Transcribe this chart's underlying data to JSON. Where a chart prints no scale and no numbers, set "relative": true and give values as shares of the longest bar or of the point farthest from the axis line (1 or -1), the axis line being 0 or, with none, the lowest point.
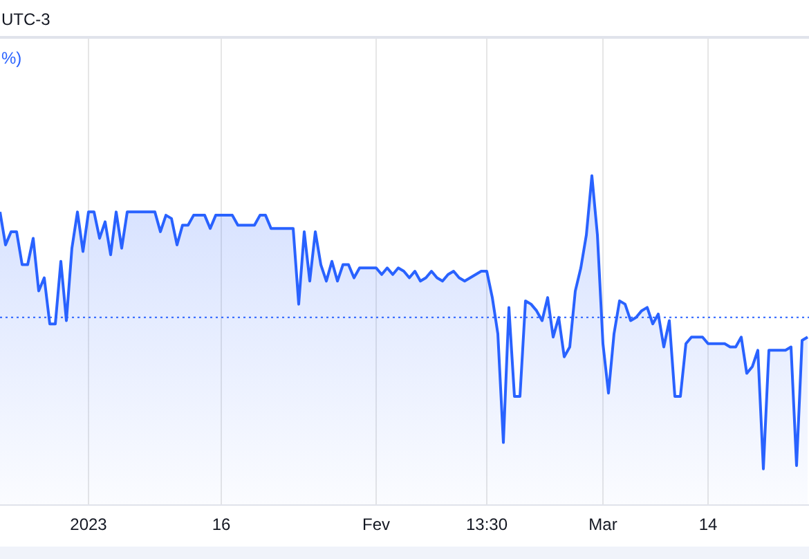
{
  "chart_data": {
    "type": "area",
    "relative": true,
    "color": "#2962ff",
    "categories": [
      null,
      null,
      null,
      null,
      null,
      null,
      null,
      null,
      null,
      null,
      null,
      null,
      null,
      null,
      null,
      null,
      "2023",
      null,
      null,
      null,
      null,
      null,
      null,
      null,
      null,
      null,
      null,
      null,
      null,
      null,
      null,
      null,
      null,
      null,
      null,
      null,
      null,
      null,
      null,
      null,
      "16",
      null,
      null,
      null,
      null,
      null,
      null,
      null,
      null,
      null,
      null,
      null,
      null,
      null,
      null,
      null,
      null,
      null,
      null,
      null,
      null,
      null,
      null,
      null,
      null,
      null,
      null,
      null,
      "Fev",
      null,
      null,
      null,
      null,
      null,
      null,
      null,
      null,
      null,
      null,
      null,
      null,
      null,
      null,
      null,
      null,
      null,
      null,
      null,
      "13:30",
      null,
      null,
      null,
      null,
      null,
      null,
      null,
      null,
      null,
      null,
      null,
      null,
      null,
      null,
      null,
      null,
      null,
      null,
      null,
      null,
      "Mar",
      null,
      null,
      null,
      null,
      null,
      null,
      null,
      null,
      null,
      null,
      null,
      null,
      null,
      null,
      null,
      null,
      null,
      null,
      "14",
      null,
      null,
      null,
      null,
      null,
      null,
      null,
      null,
      null,
      null,
      null,
      null,
      null,
      null,
      null,
      null,
      null,
      null
    ],
    "values": [
      0.89,
      0.79,
      0.83,
      0.83,
      0.73,
      0.73,
      0.81,
      0.65,
      0.69,
      0.55,
      0.55,
      0.74,
      0.56,
      0.78,
      0.89,
      0.77,
      0.89,
      0.89,
      0.81,
      0.86,
      0.76,
      0.89,
      0.78,
      0.89,
      0.89,
      0.89,
      0.89,
      0.89,
      0.89,
      0.83,
      0.88,
      0.87,
      0.79,
      0.85,
      0.85,
      0.88,
      0.88,
      0.88,
      0.84,
      0.88,
      0.88,
      0.88,
      0.88,
      0.85,
      0.85,
      0.85,
      0.85,
      0.88,
      0.88,
      0.84,
      0.84,
      0.84,
      0.84,
      0.84,
      0.61,
      0.83,
      0.68,
      0.83,
      0.73,
      0.68,
      0.74,
      0.68,
      0.73,
      0.73,
      0.69,
      0.72,
      0.72,
      0.72,
      0.72,
      0.7,
      0.72,
      0.7,
      0.72,
      0.71,
      0.69,
      0.71,
      0.68,
      0.69,
      0.71,
      0.69,
      0.68,
      0.7,
      0.71,
      0.69,
      0.68,
      0.69,
      0.7,
      0.71,
      0.71,
      0.63,
      0.52,
      0.19,
      0.6,
      0.33,
      0.33,
      0.62,
      0.61,
      0.59,
      0.56,
      0.63,
      0.51,
      0.57,
      0.45,
      0.48,
      0.65,
      0.72,
      0.82,
      1,
      0.82,
      0.49,
      0.34,
      0.52,
      0.62,
      0.61,
      0.56,
      0.57,
      0.59,
      0.6,
      0.55,
      0.58,
      0.48,
      0.56,
      0.33,
      0.33,
      0.49,
      0.51,
      0.51,
      0.51,
      0.49,
      0.49,
      0.49,
      0.49,
      0.48,
      0.48,
      0.51,
      0.4,
      0.42,
      0.47,
      0.11,
      0.47,
      0.47,
      0.47,
      0.47,
      0.48,
      0.12,
      0.5,
      0.51
    ],
    "ref_lines": [
      {
        "axis": "y",
        "value": 0.57,
        "color": "#2962ff",
        "line_style": "dotted"
      }
    ],
    "grid": "x",
    "annotations": [
      "UTC-3",
      "%)"
    ]
  }
}
